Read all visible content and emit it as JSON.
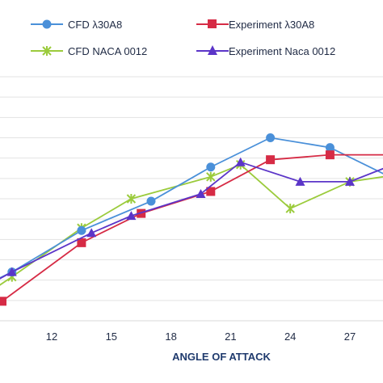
{
  "chart_data": {
    "type": "line",
    "title": "",
    "xlabel": "ANGLE OF ATTACK",
    "ylabel": "",
    "xlim": [
      7,
      30
    ],
    "ylim": [
      0,
      1
    ],
    "x_ticks": [
      12,
      15,
      18,
      21,
      24,
      27
    ],
    "grid": "horizontal",
    "legend_position": "top",
    "series": [
      {
        "name": "CFD λ30A8",
        "color": "#4A90D9",
        "marker": "circle",
        "points": [
          [
            8,
            0.12
          ],
          [
            10,
            0.2
          ],
          [
            13.5,
            0.37
          ],
          [
            17,
            0.49
          ],
          [
            20,
            0.63
          ],
          [
            23,
            0.75
          ],
          [
            26,
            0.71
          ],
          [
            29.5,
            0.57
          ]
        ]
      },
      {
        "name": "Experiment λ30A8",
        "color": "#D62B45",
        "marker": "square",
        "points": [
          [
            9.5,
            0.08
          ],
          [
            13.5,
            0.32
          ],
          [
            16.5,
            0.44
          ],
          [
            20,
            0.53
          ],
          [
            23,
            0.66
          ],
          [
            26,
            0.68
          ],
          [
            29.5,
            0.68
          ]
        ]
      },
      {
        "name": "CFD NACA 0012",
        "color": "#9BCB3C",
        "marker": "x",
        "points": [
          [
            8,
            0.07
          ],
          [
            10,
            0.18
          ],
          [
            13.5,
            0.38
          ],
          [
            16,
            0.5
          ],
          [
            20,
            0.59
          ],
          [
            21.5,
            0.64
          ],
          [
            24,
            0.46
          ],
          [
            27,
            0.57
          ],
          [
            29.5,
            0.6
          ]
        ]
      },
      {
        "name": "Experiment Naca 0012",
        "color": "#5B35C8",
        "marker": "triangle",
        "points": [
          [
            8,
            0.11
          ],
          [
            10,
            0.2
          ],
          [
            14,
            0.36
          ],
          [
            16,
            0.43
          ],
          [
            19.5,
            0.52
          ],
          [
            21.5,
            0.65
          ],
          [
            24.5,
            0.57
          ],
          [
            27,
            0.57
          ],
          [
            29.5,
            0.65
          ]
        ]
      }
    ]
  }
}
